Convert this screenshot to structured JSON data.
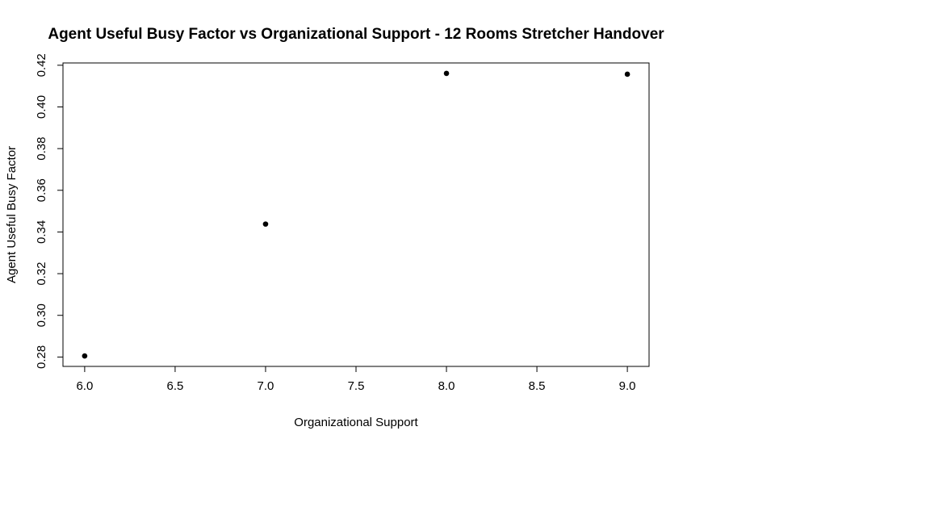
{
  "chart_data": {
    "type": "scatter",
    "title": "Agent Useful Busy Factor vs Organizational Support - 12 Rooms Stretcher Handover",
    "xlabel": "Organizational Support",
    "ylabel": "Agent Useful Busy Factor",
    "x": [
      6,
      7,
      8,
      9
    ],
    "y": [
      0.2805,
      0.3438,
      0.4161,
      0.4157
    ],
    "xlim": [
      5.88,
      9.12
    ],
    "ylim": [
      0.2755,
      0.4211
    ],
    "x_ticks": [
      6.0,
      6.5,
      7.0,
      7.5,
      8.0,
      8.5,
      9.0
    ],
    "x_tick_labels": [
      "6.0",
      "6.5",
      "7.0",
      "7.5",
      "8.0",
      "8.5",
      "9.0"
    ],
    "y_ticks": [
      0.28,
      0.3,
      0.32,
      0.34,
      0.36,
      0.38,
      0.4,
      0.42
    ],
    "y_tick_labels": [
      "0.28",
      "0.30",
      "0.32",
      "0.34",
      "0.36",
      "0.38",
      "0.40",
      "0.42"
    ],
    "grid": false,
    "legend": "none",
    "point_color": "#000000",
    "axis_color": "#000000"
  }
}
